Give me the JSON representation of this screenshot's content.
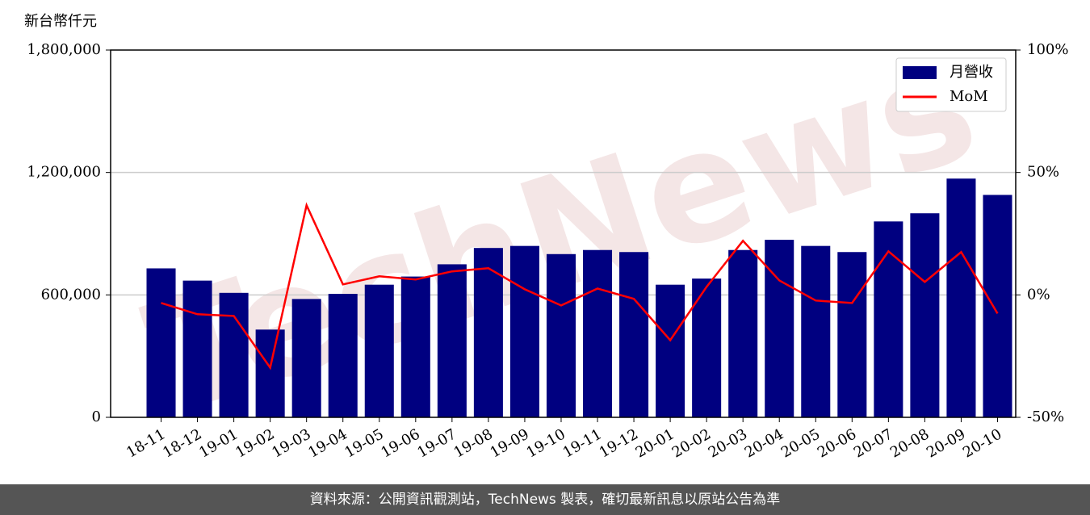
{
  "chart_data": {
    "type": "bar_line",
    "y_label": "新台幣仟元",
    "watermark": "TechNews",
    "footer": "資料來源：公開資訊觀測站，TechNews 製表，確切最新訊息以原站公告為準",
    "categories": [
      "18-11",
      "18-12",
      "19-01",
      "19-02",
      "19-03",
      "19-04",
      "19-05",
      "19-06",
      "19-07",
      "19-08",
      "19-09",
      "19-10",
      "19-11",
      "19-12",
      "20-01",
      "20-02",
      "20-03",
      "20-04",
      "20-05",
      "20-06",
      "20-07",
      "20-08",
      "20-09",
      "20-10"
    ],
    "series": [
      {
        "name": "月營收",
        "type": "bar",
        "color": "#000080",
        "values": [
          730000,
          670000,
          610000,
          430000,
          580000,
          605000,
          650000,
          690000,
          750000,
          830000,
          840000,
          800000,
          820000,
          810000,
          650000,
          680000,
          820000,
          870000,
          840000,
          810000,
          960000,
          1000000,
          1170000,
          1090000
        ]
      },
      {
        "name": "MoM",
        "type": "line",
        "axis": "y2",
        "color": "#ff0000",
        "values": [
          -3.3,
          -7.9,
          -8.6,
          -29.7,
          36.6,
          4.3,
          7.6,
          6.3,
          9.6,
          10.9,
          2.3,
          -4.3,
          2.6,
          -1.6,
          -18.5,
          3.3,
          22.1,
          5.9,
          -2.3,
          -3.3,
          17.8,
          5.3,
          17.5,
          -7.6
        ]
      }
    ],
    "ylim": [
      0,
      1800000
    ],
    "yticks": [
      0,
      {
        "value": 600000,
        "label": "600,000"
      },
      {
        "value": 1200000,
        "label": "1,200,000"
      },
      {
        "value": 1800000,
        "label": "1,800,000"
      }
    ],
    "y2lim": [
      -50,
      100
    ],
    "y2ticks": [
      {
        "value": -50,
        "label": "-50%"
      },
      {
        "value": 0,
        "label": "0%"
      },
      {
        "value": 50,
        "label": "50%"
      },
      {
        "value": 100,
        "label": "100%"
      }
    ],
    "grid": true,
    "legend": "upper right"
  }
}
